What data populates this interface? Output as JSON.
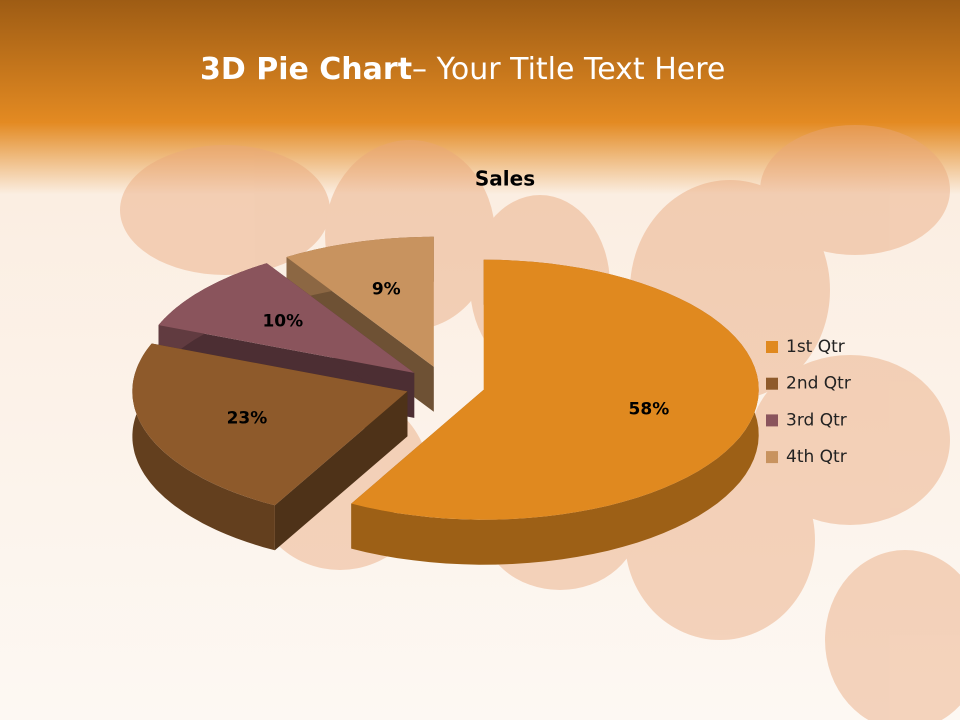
{
  "header": {
    "title": "3D Pie Chart",
    "subtitle": "– Your Title Text Here"
  },
  "chart_data": {
    "type": "pie",
    "title": "Sales",
    "categories": [
      "1st Qtr",
      "2nd Qtr",
      "3rd Qtr",
      "4th Qtr"
    ],
    "values": [
      58,
      23,
      10,
      9
    ],
    "value_labels": [
      "58%",
      "23%",
      "10%",
      "9%"
    ],
    "colors": [
      "#e0891f",
      "#8e5a2b",
      "#8a545c",
      "#c8935f"
    ],
    "legend": "right"
  }
}
